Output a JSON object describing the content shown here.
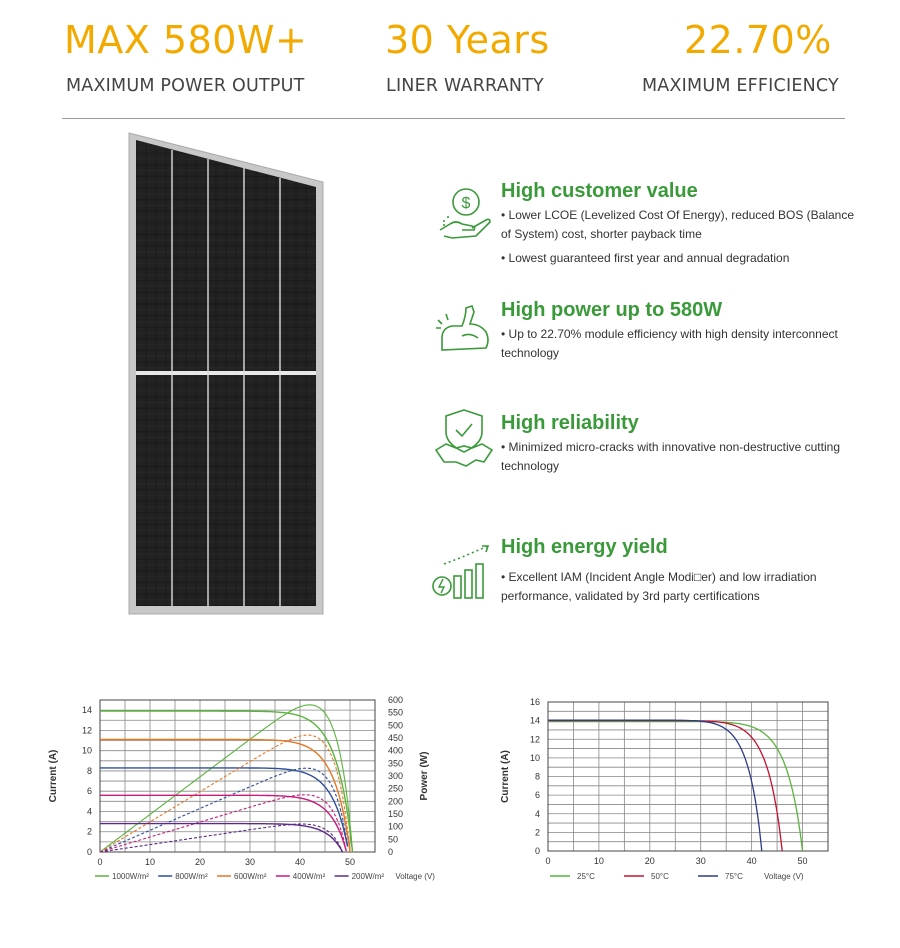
{
  "stats": [
    {
      "value": "MAX 580W+",
      "label": "MAXIMUM POWER OUTPUT"
    },
    {
      "value": "30 Years",
      "label": "LINER WARRANTY"
    },
    {
      "value": "22.70%",
      "label": "MAXIMUM EFFICIENCY"
    }
  ],
  "colors": {
    "accent": "#f2a900",
    "green": "#3a9a3a"
  },
  "features": [
    {
      "icon": "money-hand-icon",
      "title": "High customer value",
      "bullets": [
        "• Lower LCOE (Levelized Cost Of Energy), reduced BOS (Balance of System) cost, shorter payback time",
        "• Lowest guaranteed first year and annual degradation"
      ]
    },
    {
      "icon": "flexed-arm-icon",
      "title": "High power up to 580W",
      "bullets": [
        "• Up to 22.70% module efficiency with high density interconnect technology"
      ]
    },
    {
      "icon": "shield-handshake-icon",
      "title": "High reliability",
      "bullets": [
        "• Minimized micro-cracks with innovative non-destructive cutting technology"
      ]
    },
    {
      "icon": "energy-bars-icon",
      "title": "High energy yield",
      "bullets": [
        "• Excellent IAM (Incident Angle Modi□er) and low irradiation performance, validated by 3rd party certifications"
      ]
    }
  ],
  "chart_data": [
    {
      "type": "line",
      "xlabel": "Voltage (V)",
      "ylabel": "Current (A)",
      "y2label": "Power (W)",
      "xlim": [
        0,
        55
      ],
      "ylim": [
        0,
        15
      ],
      "y2lim": [
        0,
        600
      ],
      "xticks": [
        "0",
        "10",
        "20",
        "30",
        "40",
        "50"
      ],
      "yticks": [
        "0",
        "2",
        "4",
        "6",
        "8",
        "10",
        "12",
        "14"
      ],
      "y2ticks": [
        "0",
        "50",
        "100",
        "150",
        "200",
        "250",
        "300",
        "350",
        "400",
        "450",
        "500",
        "550",
        "600"
      ],
      "legend_position": "bottom",
      "series": [
        {
          "name": "1000W/m²",
          "color": "#5ab43c",
          "isc": 13.9,
          "voc": 50.5,
          "pmax": 580,
          "vmp": 42.5
        },
        {
          "name": "800W/m²",
          "color": "#2e4f9e",
          "isc": 8.3,
          "voc": 49.7,
          "pmax": 330,
          "vmp": 42.0
        },
        {
          "name": "600W/m²",
          "color": "#e87722",
          "isc": 11.1,
          "voc": 50.0,
          "pmax": 460,
          "vmp": 42.3
        },
        {
          "name": "400W/m²",
          "color": "#c8197a",
          "isc": 5.6,
          "voc": 49.3,
          "pmax": 225,
          "vmp": 41.8
        },
        {
          "name": "200W/m²",
          "color": "#5b2a86",
          "isc": 2.8,
          "voc": 48.5,
          "pmax": 110,
          "vmp": 41.0
        }
      ]
    },
    {
      "type": "line",
      "xlabel": "Voltage (V)",
      "ylabel": "Current (A)",
      "xlim": [
        0,
        55
      ],
      "ylim": [
        0,
        16
      ],
      "xticks": [
        "0",
        "10",
        "20",
        "30",
        "40",
        "50"
      ],
      "yticks": [
        "0",
        "2",
        "4",
        "6",
        "8",
        "10",
        "12",
        "14",
        "16"
      ],
      "legend_position": "bottom",
      "series": [
        {
          "name": "25°C",
          "color": "#5ab43c",
          "isc": 13.9,
          "voc": 50.0
        },
        {
          "name": "50°C",
          "color": "#c8102e",
          "isc": 14.0,
          "voc": 46.0
        },
        {
          "name": "75°C",
          "color": "#2e3a8c",
          "isc": 14.05,
          "voc": 42.0
        }
      ]
    }
  ]
}
